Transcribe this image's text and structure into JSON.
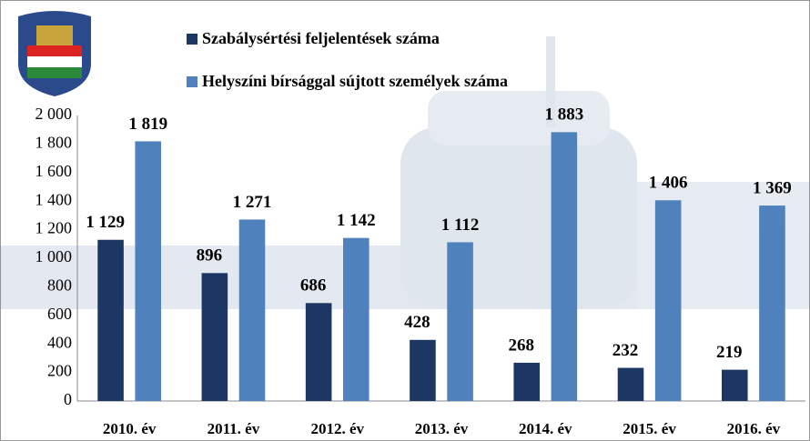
{
  "chart_data": {
    "type": "bar",
    "categories": [
      "2010. év",
      "2011. év",
      "2012. év",
      "2013. év",
      "2014. év",
      "2015. év",
      "2016. év"
    ],
    "series": [
      {
        "name": "Szabálysértési feljelentések száma",
        "color": "#1c3763",
        "values": [
          1129,
          896,
          686,
          428,
          268,
          232,
          219
        ],
        "value_labels": [
          "1 129",
          "896",
          "686",
          "428",
          "268",
          "232",
          "219"
        ]
      },
      {
        "name": "Helyszíni bírsággal sújtott személyek száma",
        "color": "#4f81bd",
        "values": [
          1819,
          1271,
          1142,
          1112,
          1883,
          1406,
          1369
        ],
        "value_labels": [
          "1 819",
          "1 271",
          "1 142",
          "1 112",
          "1 883",
          "1 406",
          "1 369"
        ]
      }
    ],
    "ylim": [
      0,
      2000
    ],
    "yticks": [
      0,
      200,
      400,
      600,
      800,
      {
        "value": 1000,
        "label": "1 000"
      },
      {
        "value": 1200,
        "label": "1 200"
      },
      {
        "value": 1400,
        "label": "1 400"
      },
      {
        "value": 1600,
        "label": "1 600"
      },
      {
        "value": 1800,
        "label": "1 800"
      },
      {
        "value": 2000,
        "label": "2 000"
      }
    ],
    "grid": false
  }
}
